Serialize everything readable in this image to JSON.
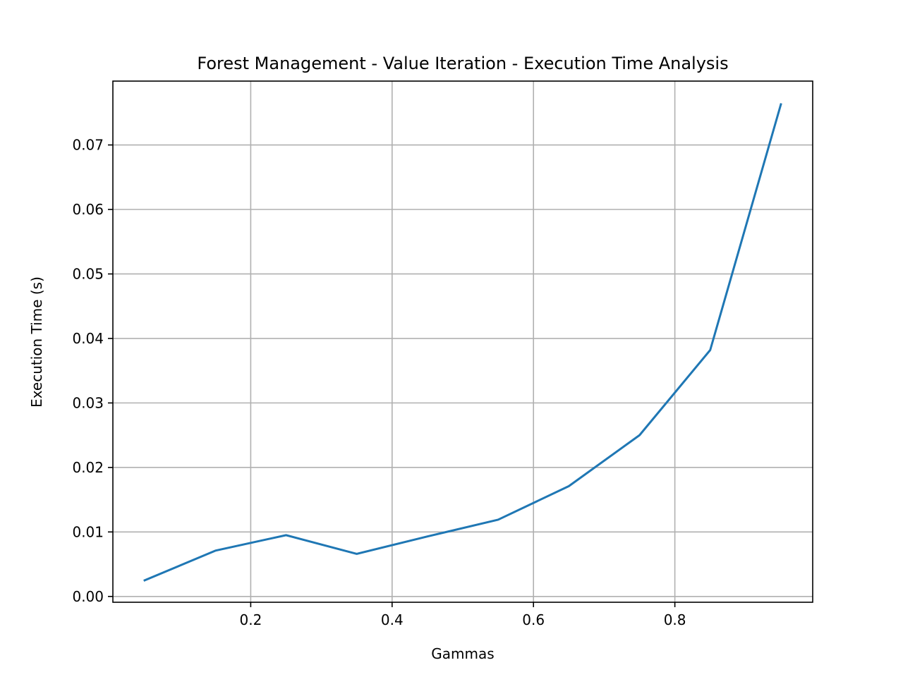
{
  "chart_data": {
    "type": "line",
    "title": "Forest Management - Value Iteration - Execution Time Analysis",
    "xlabel": "Gammas",
    "ylabel": "Execution Time (s)",
    "x": [
      0.05,
      0.15,
      0.25,
      0.35,
      0.45,
      0.55,
      0.65,
      0.75,
      0.85,
      0.95
    ],
    "series": [
      {
        "values": [
          0.0025,
          0.0071,
          0.0095,
          0.0066,
          0.0093,
          0.0119,
          0.0171,
          0.025,
          0.0382,
          0.0763
        ],
        "color": "#1f77b4"
      }
    ],
    "xlim": [
      0.005,
      0.995
    ],
    "ylim": [
      -0.0009,
      0.0799
    ],
    "xticks": [
      0.2,
      0.4,
      0.6,
      0.8
    ],
    "xtick_labels": [
      "0.2",
      "0.4",
      "0.6",
      "0.8"
    ],
    "yticks": [
      0.0,
      0.01,
      0.02,
      0.03,
      0.04,
      0.05,
      0.06,
      0.07
    ],
    "ytick_labels": [
      "0.00",
      "0.01",
      "0.02",
      "0.03",
      "0.04",
      "0.05",
      "0.06",
      "0.07"
    ],
    "grid": true,
    "legend": false
  }
}
